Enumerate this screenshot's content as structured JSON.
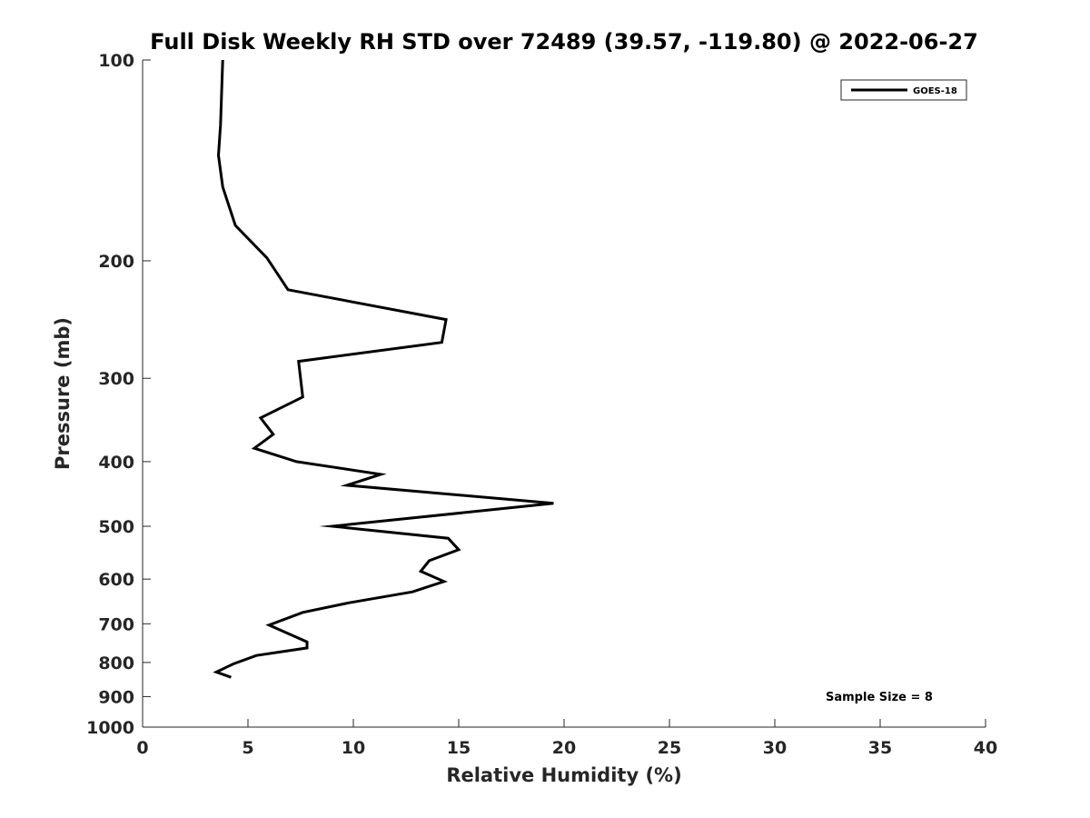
{
  "chart_data": {
    "type": "line",
    "title": "Full Disk Weekly RH STD over 72489 (39.57, -119.80) @ 2022-06-27",
    "xlabel": "Relative Humidity (%)",
    "ylabel": "Pressure (mb)",
    "xlim": [
      0,
      40
    ],
    "ylim": [
      1000,
      100
    ],
    "y_scale": "log",
    "y_reversed": true,
    "grid": false,
    "legend_position": "top-right",
    "x_ticks": [
      0,
      5,
      10,
      15,
      20,
      25,
      30,
      35,
      40
    ],
    "x_tick_labels": [
      "0",
      "5",
      "10",
      "15",
      "20",
      "25",
      "30",
      "35",
      "40"
    ],
    "y_ticks": [
      100,
      200,
      300,
      400,
      500,
      600,
      700,
      800,
      900,
      1000
    ],
    "y_tick_labels": [
      "100",
      "200",
      "300",
      "400",
      "500",
      "600",
      "700",
      "800",
      "900",
      "1000"
    ],
    "series": [
      {
        "name": "GOES-18",
        "color": "#000000",
        "points": [
          {
            "x": 3.8,
            "y": 100
          },
          {
            "x": 3.7,
            "y": 125
          },
          {
            "x": 3.6,
            "y": 139
          },
          {
            "x": 3.8,
            "y": 155
          },
          {
            "x": 4.4,
            "y": 177
          },
          {
            "x": 5.9,
            "y": 198
          },
          {
            "x": 6.9,
            "y": 221
          },
          {
            "x": 14.4,
            "y": 245
          },
          {
            "x": 14.2,
            "y": 265
          },
          {
            "x": 7.4,
            "y": 283
          },
          {
            "x": 7.6,
            "y": 320
          },
          {
            "x": 5.6,
            "y": 344
          },
          {
            "x": 6.2,
            "y": 364
          },
          {
            "x": 5.3,
            "y": 382
          },
          {
            "x": 7.3,
            "y": 400
          },
          {
            "x": 11.3,
            "y": 418
          },
          {
            "x": 9.7,
            "y": 434
          },
          {
            "x": 19.5,
            "y": 462
          },
          {
            "x": 9.0,
            "y": 500
          },
          {
            "x": 14.5,
            "y": 521
          },
          {
            "x": 15.0,
            "y": 542
          },
          {
            "x": 13.6,
            "y": 563
          },
          {
            "x": 13.2,
            "y": 584
          },
          {
            "x": 14.3,
            "y": 605
          },
          {
            "x": 12.8,
            "y": 627
          },
          {
            "x": 9.8,
            "y": 651
          },
          {
            "x": 7.6,
            "y": 673
          },
          {
            "x": 6.0,
            "y": 703
          },
          {
            "x": 7.8,
            "y": 745
          },
          {
            "x": 7.8,
            "y": 761
          },
          {
            "x": 5.4,
            "y": 781
          },
          {
            "x": 4.3,
            "y": 804
          },
          {
            "x": 3.5,
            "y": 827
          },
          {
            "x": 4.2,
            "y": 842
          }
        ]
      }
    ],
    "annotations": [
      {
        "text": "Sample Size = 8"
      }
    ]
  }
}
